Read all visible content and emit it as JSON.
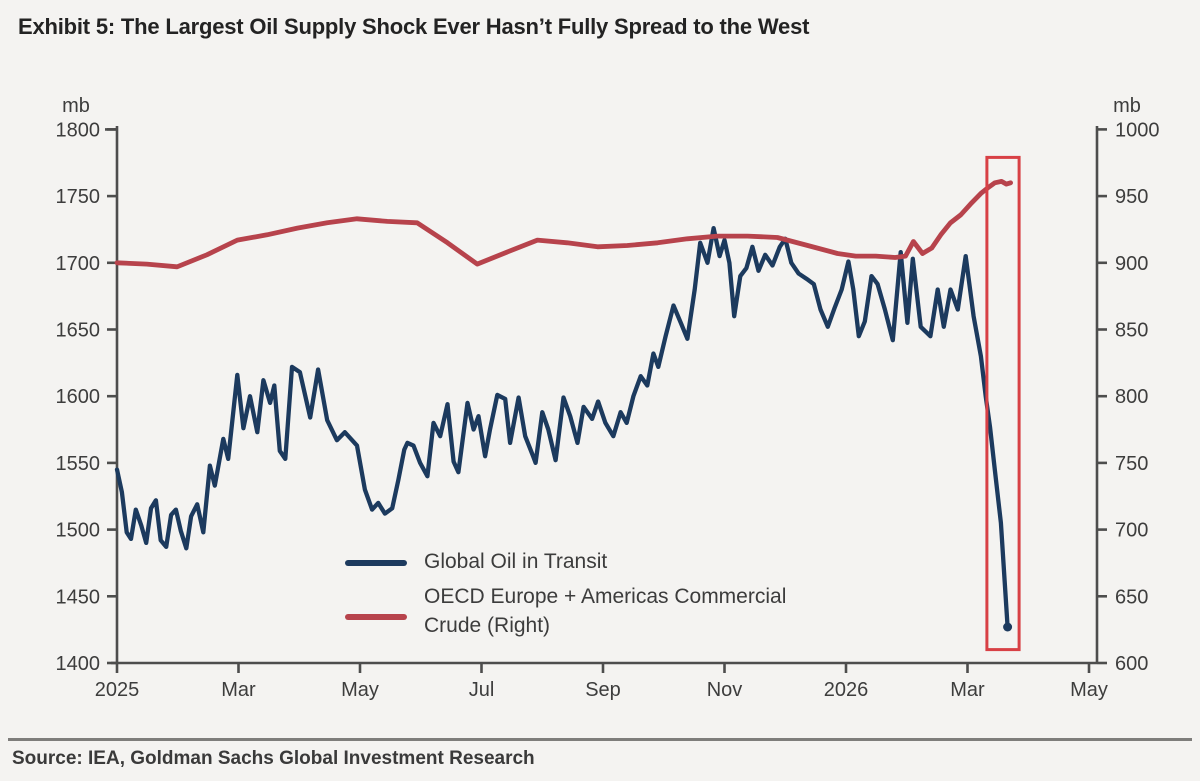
{
  "title": "Exhibit 5: The Largest Oil Supply Shock Ever Hasn’t Fully Spread to the West",
  "source": "Source: IEA, Goldman Sachs Global Investment Research",
  "colors": {
    "background": "#f4f3f1",
    "blue_series": "#1c3a5e",
    "red_series": "#b7434c",
    "highlight_box": "#d84045",
    "axis": "#4d4d4d",
    "tick_text": "#3d3d3d"
  },
  "legend": {
    "items": [
      {
        "label": "Global Oil in Transit",
        "color": "#1c3a5e"
      },
      {
        "label_line1": "OECD Europe + Americas Commercial",
        "label_line2": "Crude (Right)",
        "color": "#b7434c"
      }
    ]
  },
  "chart_data": {
    "type": "line",
    "x_unit": "months since Jan 2025 (0 = 2025 tick, 16 = May 2026 tick)",
    "x_tick_labels": [
      "2025",
      "Mar",
      "May",
      "Jul",
      "Sep",
      "Nov",
      "2026",
      "Mar",
      "May"
    ],
    "x_tick_months": [
      0,
      2,
      4,
      6,
      8,
      10,
      12,
      14,
      16
    ],
    "left_axis": {
      "label": "mb",
      "min": 1400,
      "max": 1800,
      "ticks": [
        1400,
        1450,
        1500,
        1550,
        1600,
        1650,
        1700,
        1750,
        1800
      ]
    },
    "right_axis": {
      "label": "mb",
      "min": 600,
      "max": 1000,
      "ticks": [
        600,
        650,
        700,
        750,
        800,
        850,
        900,
        950,
        1000
      ]
    },
    "grid": false,
    "legend_position": "inside lower-center",
    "series": [
      {
        "name": "Global Oil in Transit",
        "axis": "left",
        "color": "#1c3a5e",
        "points": [
          [
            0,
            1545
          ],
          [
            0.08,
            1528
          ],
          [
            0.16,
            1498
          ],
          [
            0.23,
            1493
          ],
          [
            0.31,
            1515
          ],
          [
            0.4,
            1503
          ],
          [
            0.48,
            1490
          ],
          [
            0.56,
            1516
          ],
          [
            0.64,
            1522
          ],
          [
            0.72,
            1492
          ],
          [
            0.81,
            1487
          ],
          [
            0.89,
            1511
          ],
          [
            0.97,
            1515
          ],
          [
            1.05,
            1499
          ],
          [
            1.14,
            1486
          ],
          [
            1.22,
            1510
          ],
          [
            1.32,
            1519
          ],
          [
            1.42,
            1498
          ],
          [
            1.53,
            1548
          ],
          [
            1.61,
            1533
          ],
          [
            1.75,
            1568
          ],
          [
            1.83,
            1553
          ],
          [
            1.98,
            1616
          ],
          [
            2.08,
            1576
          ],
          [
            2.19,
            1600
          ],
          [
            2.31,
            1573
          ],
          [
            2.41,
            1612
          ],
          [
            2.52,
            1595
          ],
          [
            2.59,
            1608
          ],
          [
            2.68,
            1559
          ],
          [
            2.77,
            1553
          ],
          [
            2.88,
            1622
          ],
          [
            3.01,
            1618
          ],
          [
            3.18,
            1584
          ],
          [
            3.31,
            1620
          ],
          [
            3.46,
            1582
          ],
          [
            3.62,
            1567
          ],
          [
            3.75,
            1573
          ],
          [
            3.95,
            1563
          ],
          [
            4.08,
            1530
          ],
          [
            4.2,
            1515
          ],
          [
            4.3,
            1520
          ],
          [
            4.41,
            1512
          ],
          [
            4.53,
            1516
          ],
          [
            4.63,
            1537
          ],
          [
            4.73,
            1560
          ],
          [
            4.78,
            1565
          ],
          [
            4.88,
            1563
          ],
          [
            4.99,
            1550
          ],
          [
            5.11,
            1540
          ],
          [
            5.21,
            1580
          ],
          [
            5.32,
            1570
          ],
          [
            5.44,
            1594
          ],
          [
            5.54,
            1551
          ],
          [
            5.62,
            1543
          ],
          [
            5.77,
            1595
          ],
          [
            5.87,
            1575
          ],
          [
            5.95,
            1585
          ],
          [
            6.06,
            1555
          ],
          [
            6.14,
            1575
          ],
          [
            6.26,
            1601
          ],
          [
            6.39,
            1598
          ],
          [
            6.47,
            1565
          ],
          [
            6.61,
            1599
          ],
          [
            6.72,
            1570
          ],
          [
            6.85,
            1555
          ],
          [
            6.89,
            1550
          ],
          [
            7,
            1588
          ],
          [
            7.1,
            1575
          ],
          [
            7.22,
            1552
          ],
          [
            7.35,
            1599
          ],
          [
            7.46,
            1585
          ],
          [
            7.58,
            1565
          ],
          [
            7.68,
            1592
          ],
          [
            7.82,
            1583
          ],
          [
            7.92,
            1596
          ],
          [
            8.04,
            1580
          ],
          [
            8.17,
            1570
          ],
          [
            8.29,
            1588
          ],
          [
            8.39,
            1580
          ],
          [
            8.5,
            1600
          ],
          [
            8.62,
            1615
          ],
          [
            8.73,
            1608
          ],
          [
            8.83,
            1632
          ],
          [
            8.91,
            1622
          ],
          [
            9.03,
            1645
          ],
          [
            9.16,
            1668
          ],
          [
            9.28,
            1655
          ],
          [
            9.39,
            1643
          ],
          [
            9.51,
            1680
          ],
          [
            9.6,
            1715
          ],
          [
            9.72,
            1700
          ],
          [
            9.82,
            1726
          ],
          [
            9.92,
            1705
          ],
          [
            10,
            1717
          ],
          [
            10.08,
            1700
          ],
          [
            10.16,
            1660
          ],
          [
            10.26,
            1690
          ],
          [
            10.36,
            1696
          ],
          [
            10.46,
            1712
          ],
          [
            10.56,
            1694
          ],
          [
            10.67,
            1706
          ],
          [
            10.79,
            1698
          ],
          [
            10.91,
            1712
          ],
          [
            11,
            1718
          ],
          [
            11.1,
            1700
          ],
          [
            11.22,
            1692
          ],
          [
            11.35,
            1688
          ],
          [
            11.47,
            1684
          ],
          [
            11.58,
            1665
          ],
          [
            11.7,
            1652
          ],
          [
            11.81,
            1666
          ],
          [
            11.93,
            1680
          ],
          [
            12.04,
            1701
          ],
          [
            12.12,
            1680
          ],
          [
            12.21,
            1645
          ],
          [
            12.31,
            1656
          ],
          [
            12.42,
            1690
          ],
          [
            12.52,
            1684
          ],
          [
            12.64,
            1665
          ],
          [
            12.77,
            1642
          ],
          [
            12.9,
            1708
          ],
          [
            13.01,
            1655
          ],
          [
            13.1,
            1703
          ],
          [
            13.23,
            1652
          ],
          [
            13.39,
            1645
          ],
          [
            13.51,
            1680
          ],
          [
            13.61,
            1652
          ],
          [
            13.72,
            1680
          ],
          [
            13.84,
            1665
          ],
          [
            13.97,
            1705
          ],
          [
            14.1,
            1660
          ],
          [
            14.22,
            1630
          ],
          [
            14.3,
            1600
          ],
          [
            14.37,
            1577
          ],
          [
            14.45,
            1545
          ],
          [
            14.55,
            1505
          ],
          [
            14.61,
            1462
          ],
          [
            14.66,
            1427
          ]
        ]
      },
      {
        "name": "OECD Europe + Americas Commercial Crude (Right)",
        "axis": "right",
        "color": "#b7434c",
        "points": [
          [
            0,
            900
          ],
          [
            0.49,
            899
          ],
          [
            0.99,
            897
          ],
          [
            1.48,
            906
          ],
          [
            1.98,
            917
          ],
          [
            2.47,
            921
          ],
          [
            2.97,
            926
          ],
          [
            3.46,
            930
          ],
          [
            3.95,
            933
          ],
          [
            4.45,
            931
          ],
          [
            4.94,
            930
          ],
          [
            5.44,
            915
          ],
          [
            5.93,
            899
          ],
          [
            6.42,
            908
          ],
          [
            6.92,
            917
          ],
          [
            7.41,
            915
          ],
          [
            7.91,
            912
          ],
          [
            8.4,
            913
          ],
          [
            8.9,
            915
          ],
          [
            9.39,
            918
          ],
          [
            9.88,
            920
          ],
          [
            10.38,
            920
          ],
          [
            10.87,
            919
          ],
          [
            11.37,
            913
          ],
          [
            11.86,
            907
          ],
          [
            12.16,
            905
          ],
          [
            12.49,
            905
          ],
          [
            12.81,
            904
          ],
          [
            12.98,
            905
          ],
          [
            13.11,
            916
          ],
          [
            13.26,
            907
          ],
          [
            13.41,
            911
          ],
          [
            13.56,
            921
          ],
          [
            13.72,
            930
          ],
          [
            13.89,
            936
          ],
          [
            14.05,
            944
          ],
          [
            14.22,
            952
          ],
          [
            14.33,
            956
          ],
          [
            14.45,
            960
          ],
          [
            14.56,
            961
          ],
          [
            14.64,
            959
          ],
          [
            14.71,
            960
          ]
        ]
      }
    ],
    "highlight_box": {
      "x_start_month": 14.32,
      "x_end_month": 14.85,
      "y_top_left_axis": 1779,
      "y_bottom_left_axis": 1410,
      "color": "#d84045"
    }
  }
}
